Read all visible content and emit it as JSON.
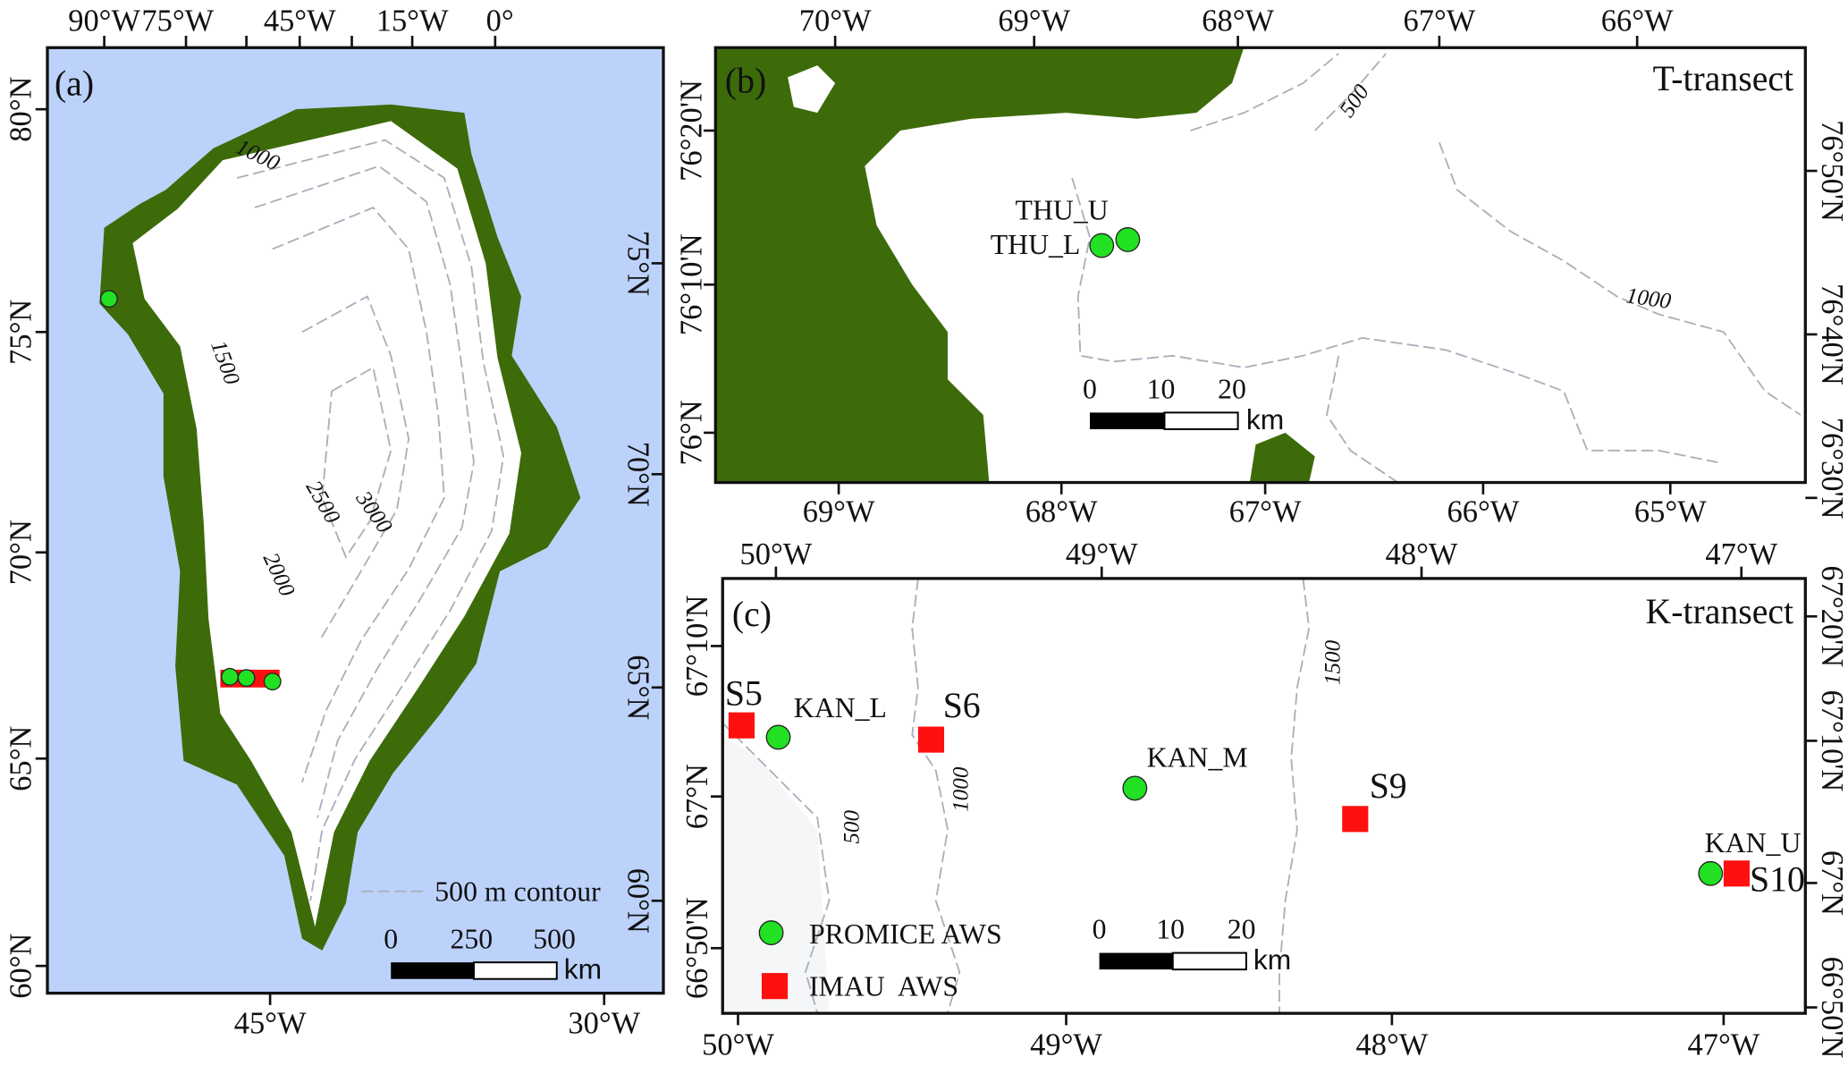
{
  "colors": {
    "ocean": "#bcd2fa",
    "land": "#3d6b0a",
    "ice": "#ffffff",
    "promice": "#22e022",
    "imau": "#ff1010",
    "contour": "#aab0bb"
  },
  "panel_a": {
    "label": "(a)",
    "top_ticks": [
      "90°W",
      "75°W",
      "45°W",
      "15°W",
      "0°"
    ],
    "bottom_ticks": [
      "45°W",
      "30°W"
    ],
    "left_ticks": [
      "80°N",
      "75°N",
      "70°N",
      "65°N",
      "60°N"
    ],
    "right_ticks": [
      "75°N",
      "70°N",
      "65°N",
      "60°N"
    ],
    "contour_labels": [
      "1000",
      "1500",
      "2000",
      "2500",
      "3000"
    ],
    "contour_legend": "500 m contour",
    "scale": {
      "ticks": [
        "0",
        "250",
        "500"
      ],
      "unit": "km"
    }
  },
  "panel_b": {
    "label": "(b)",
    "title": "T-transect",
    "top_ticks": [
      "70°W",
      "69°W",
      "68°W",
      "67°W",
      "66°W"
    ],
    "bottom_ticks": [
      "69°W",
      "68°W",
      "67°W",
      "66°W",
      "65°W"
    ],
    "left_ticks": [
      "76°20'N",
      "76°10'N",
      "76°N"
    ],
    "right_ticks": [
      "76°50'N",
      "76°40'N",
      "76°30'N"
    ],
    "contour_labels": [
      "500",
      "1000"
    ],
    "stations": [
      "THU_U",
      "THU_L"
    ],
    "scale": {
      "ticks": [
        "0",
        "10",
        "20"
      ],
      "unit": "km"
    }
  },
  "panel_c": {
    "label": "(c)",
    "title": "K-transect",
    "top_ticks": [
      "50°W",
      "49°W",
      "48°W",
      "47°W"
    ],
    "bottom_ticks": [
      "50°W",
      "49°W",
      "48°W",
      "47°W"
    ],
    "left_ticks": [
      "67°10'N",
      "67°N",
      "66°50'N"
    ],
    "right_ticks": [
      "67°20'N",
      "67°10'N",
      "67°N",
      "66°50'N"
    ],
    "contour_labels": [
      "500",
      "1000",
      "1500"
    ],
    "stations": {
      "S5": "S5",
      "KAN_L": "KAN_L",
      "S6": "S6",
      "KAN_M": "KAN_M",
      "S9": "S9",
      "KAN_U": "KAN_U",
      "S10": "S10"
    },
    "legend": {
      "promice": "PROMICE AWS",
      "imau": "IMAU  AWS"
    },
    "scale": {
      "ticks": [
        "0",
        "10",
        "20"
      ],
      "unit": "km"
    }
  }
}
